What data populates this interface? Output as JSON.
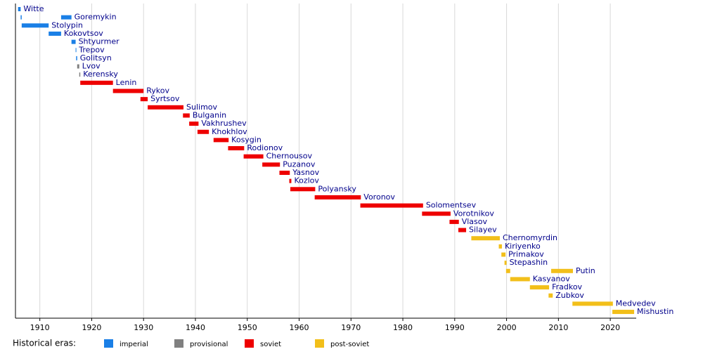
{
  "chart_data": {
    "type": "timeline",
    "xlim": [
      1905.3,
      2025
    ],
    "xticks": [
      1910,
      1920,
      1930,
      1940,
      1950,
      1960,
      1970,
      1980,
      1990,
      2000,
      2010,
      2020
    ],
    "grid": true,
    "label_color": "#00008b",
    "legend_title": "Historical eras:",
    "eras": [
      {
        "name": "imperial",
        "color": "#1a7fe6"
      },
      {
        "name": "provisional",
        "color": "#808080"
      },
      {
        "name": "soviet",
        "color": "#ee0000"
      },
      {
        "name": "post-soviet",
        "color": "#f2bf1a"
      }
    ],
    "rows": [
      {
        "name": "Witte",
        "era": "imperial",
        "spans": [
          [
            1905.8,
            1906.3
          ]
        ]
      },
      {
        "name": "Goremykin",
        "era": "imperial",
        "spans": [
          [
            1906.3,
            1906.5
          ],
          [
            1914.1,
            1916.1
          ]
        ]
      },
      {
        "name": "Stolypin",
        "era": "imperial",
        "spans": [
          [
            1906.5,
            1911.7
          ]
        ]
      },
      {
        "name": "Kokovtsov",
        "era": "imperial",
        "spans": [
          [
            1911.7,
            1914.1
          ]
        ]
      },
      {
        "name": "Shtyurmer",
        "era": "imperial",
        "spans": [
          [
            1916.1,
            1916.9
          ]
        ]
      },
      {
        "name": "Trepov",
        "era": "imperial",
        "spans": [
          [
            1916.9,
            1917.0
          ]
        ]
      },
      {
        "name": "Golitsyn",
        "era": "imperial",
        "spans": [
          [
            1917.0,
            1917.2
          ]
        ]
      },
      {
        "name": "Lvov",
        "era": "provisional",
        "spans": [
          [
            1917.2,
            1917.6
          ]
        ]
      },
      {
        "name": "Kerensky",
        "era": "provisional",
        "spans": [
          [
            1917.6,
            1917.8
          ]
        ]
      },
      {
        "name": "Lenin",
        "era": "soviet",
        "spans": [
          [
            1917.8,
            1924.1
          ]
        ]
      },
      {
        "name": "Rykov",
        "era": "soviet",
        "spans": [
          [
            1924.1,
            1930.0
          ]
        ]
      },
      {
        "name": "Syrtsov",
        "era": "soviet",
        "spans": [
          [
            1929.4,
            1930.8
          ]
        ]
      },
      {
        "name": "Sulimov",
        "era": "soviet",
        "spans": [
          [
            1930.8,
            1937.7
          ]
        ]
      },
      {
        "name": "Bulganin",
        "era": "soviet",
        "spans": [
          [
            1937.6,
            1938.9
          ]
        ]
      },
      {
        "name": "Vakhrushev",
        "era": "soviet",
        "spans": [
          [
            1938.8,
            1940.6
          ]
        ]
      },
      {
        "name": "Khokhlov",
        "era": "soviet",
        "spans": [
          [
            1940.4,
            1942.6
          ]
        ]
      },
      {
        "name": "Kosygin",
        "era": "soviet",
        "spans": [
          [
            1943.5,
            1946.4
          ]
        ]
      },
      {
        "name": "Rodionov",
        "era": "soviet",
        "spans": [
          [
            1946.3,
            1949.4
          ]
        ]
      },
      {
        "name": "Chernousov",
        "era": "soviet",
        "spans": [
          [
            1949.3,
            1953.1
          ]
        ]
      },
      {
        "name": "Puzanov",
        "era": "soviet",
        "spans": [
          [
            1952.9,
            1956.3
          ]
        ]
      },
      {
        "name": "Yasnov",
        "era": "soviet",
        "spans": [
          [
            1956.2,
            1958.2
          ]
        ]
      },
      {
        "name": "Kozlov",
        "era": "soviet",
        "spans": [
          [
            1958.1,
            1958.5
          ]
        ]
      },
      {
        "name": "Polyansky",
        "era": "soviet",
        "spans": [
          [
            1958.3,
            1963.1
          ]
        ]
      },
      {
        "name": "Voronov",
        "era": "soviet",
        "spans": [
          [
            1963.0,
            1971.9
          ]
        ]
      },
      {
        "name": "Solomentsev",
        "era": "soviet",
        "spans": [
          [
            1971.8,
            1983.9
          ]
        ]
      },
      {
        "name": "Vorotnikov",
        "era": "soviet",
        "spans": [
          [
            1983.7,
            1989.2
          ]
        ]
      },
      {
        "name": "Vlasov",
        "era": "soviet",
        "spans": [
          [
            1989.0,
            1990.8
          ]
        ]
      },
      {
        "name": "Silayev",
        "era": "soviet",
        "spans": [
          [
            1990.7,
            1992.2
          ]
        ]
      },
      {
        "name": "Chernomyrdin",
        "era": "post-soviet",
        "spans": [
          [
            1993.2,
            1998.7
          ]
        ]
      },
      {
        "name": "Kiriyenko",
        "era": "post-soviet",
        "spans": [
          [
            1998.5,
            1999.1
          ]
        ]
      },
      {
        "name": "Primakov",
        "era": "post-soviet",
        "spans": [
          [
            1999.0,
            1999.8
          ]
        ]
      },
      {
        "name": "Stepashin",
        "era": "post-soviet",
        "spans": [
          [
            1999.6,
            2000.0
          ]
        ]
      },
      {
        "name": "Putin",
        "era": "post-soviet",
        "spans": [
          [
            1999.9,
            2000.7
          ],
          [
            2008.6,
            2012.8
          ]
        ]
      },
      {
        "name": "Kasyanov",
        "era": "post-soviet",
        "spans": [
          [
            2000.7,
            2004.5
          ]
        ]
      },
      {
        "name": "Fradkov",
        "era": "post-soviet",
        "spans": [
          [
            2004.5,
            2008.2
          ]
        ]
      },
      {
        "name": "Zubkov",
        "era": "post-soviet",
        "spans": [
          [
            2008.1,
            2008.9
          ]
        ]
      },
      {
        "name": "Medvedev",
        "era": "post-soviet",
        "spans": [
          [
            2012.7,
            2020.5
          ]
        ]
      },
      {
        "name": "Mishustin",
        "era": "post-soviet",
        "spans": [
          [
            2020.4,
            2024.6
          ]
        ]
      }
    ]
  }
}
